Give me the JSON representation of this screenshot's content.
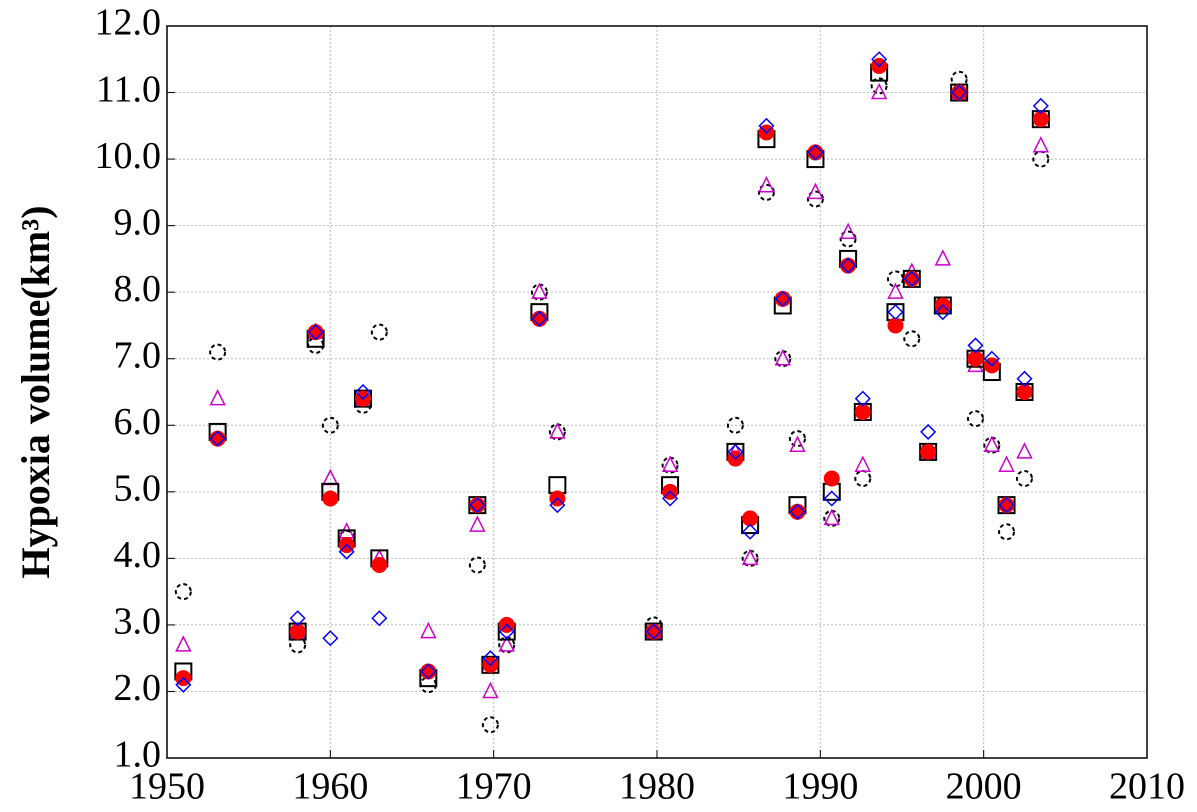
{
  "chart_data": {
    "type": "scatter",
    "ylabel": "Hypoxia volume(km³)",
    "x": [
      1951.0,
      1953.1,
      1958.0,
      1959.1,
      1960.0,
      1961.0,
      1962.0,
      1963.0,
      1966.0,
      1969.0,
      1969.8,
      1970.8,
      1972.8,
      1973.9,
      1979.8,
      1980.8,
      1984.8,
      1985.7,
      1986.7,
      1987.7,
      1988.6,
      1989.7,
      1990.7,
      1991.7,
      1992.6,
      1993.6,
      1994.6,
      1995.6,
      1996.6,
      1997.5,
      1998.5,
      1999.5,
      2000.5,
      2001.4,
      2002.5,
      2003.5
    ],
    "series": [
      {
        "marker": "dashed-circle",
        "color": "#000000",
        "values": [
          3.5,
          7.1,
          2.7,
          7.2,
          6.0,
          4.3,
          6.3,
          7.4,
          2.1,
          3.9,
          1.5,
          2.7,
          8.0,
          5.9,
          3.0,
          5.4,
          6.0,
          4.0,
          9.5,
          7.0,
          5.8,
          9.4,
          4.6,
          8.8,
          5.2,
          11.1,
          8.2,
          7.3,
          5.6,
          7.8,
          11.2,
          6.1,
          5.7,
          4.4,
          5.2,
          10.0
        ]
      },
      {
        "marker": "triangle",
        "color": "#cc00cc",
        "values": [
          2.7,
          6.4,
          2.9,
          7.4,
          5.2,
          4.4,
          6.4,
          4.0,
          2.9,
          4.5,
          2.0,
          2.7,
          8.0,
          5.9,
          2.9,
          5.4,
          5.6,
          4.0,
          9.6,
          7.0,
          5.7,
          9.5,
          4.6,
          8.9,
          5.4,
          11.0,
          8.0,
          8.3,
          5.6,
          8.5,
          11.0,
          6.9,
          5.7,
          5.4,
          5.6,
          10.2
        ]
      },
      {
        "marker": "square",
        "color": "#000000",
        "values": [
          2.3,
          5.9,
          2.9,
          7.3,
          5.0,
          4.3,
          6.4,
          4.0,
          2.2,
          4.8,
          2.4,
          2.9,
          7.7,
          5.1,
          2.9,
          5.1,
          5.6,
          4.5,
          10.3,
          7.8,
          4.8,
          10.0,
          5.0,
          8.5,
          6.2,
          11.3,
          7.7,
          8.2,
          5.6,
          7.8,
          11.0,
          7.0,
          6.8,
          4.8,
          6.5,
          10.6
        ]
      },
      {
        "marker": "filled-circle",
        "color": "#ff0000",
        "values": [
          2.2,
          5.8,
          2.9,
          7.4,
          4.9,
          4.2,
          6.4,
          3.9,
          2.3,
          4.8,
          2.4,
          3.0,
          7.6,
          4.9,
          2.9,
          5.0,
          5.5,
          4.6,
          10.4,
          7.9,
          4.7,
          10.1,
          5.2,
          8.4,
          6.2,
          11.4,
          7.5,
          8.2,
          5.6,
          7.8,
          11.0,
          7.0,
          6.9,
          4.8,
          6.5,
          10.6
        ]
      },
      {
        "marker": "diamond",
        "color": "#0000ff",
        "values": [
          2.1,
          5.8,
          3.1,
          7.4,
          2.8,
          4.1,
          6.5,
          3.1,
          2.3,
          4.8,
          2.5,
          2.9,
          7.6,
          4.8,
          2.9,
          4.9,
          5.6,
          4.4,
          10.5,
          7.9,
          4.7,
          10.1,
          4.9,
          8.4,
          6.4,
          11.5,
          7.7,
          8.2,
          5.9,
          7.7,
          11.0,
          7.2,
          7.0,
          4.8,
          6.7,
          10.8
        ]
      }
    ],
    "xlim": [
      1950,
      2010
    ],
    "xticks": [
      1950,
      1960,
      1970,
      1980,
      1990,
      2000,
      2010
    ],
    "ylim": [
      1,
      12
    ],
    "yticks": [
      {
        "value": 1,
        "label": "1.0"
      },
      {
        "value": 2,
        "label": "2.0"
      },
      {
        "value": 3,
        "label": "3.0"
      },
      {
        "value": 4,
        "label": "4.0"
      },
      {
        "value": 5,
        "label": "5.0"
      },
      {
        "value": 6,
        "label": "6.0"
      },
      {
        "value": 7,
        "label": "7.0"
      },
      {
        "value": 8,
        "label": "8.0"
      },
      {
        "value": 9,
        "label": "9.0"
      },
      {
        "value": 10,
        "label": "10.0"
      },
      {
        "value": 11,
        "label": "11.0"
      },
      {
        "value": 12,
        "label": "12.0"
      }
    ],
    "grid": true
  }
}
